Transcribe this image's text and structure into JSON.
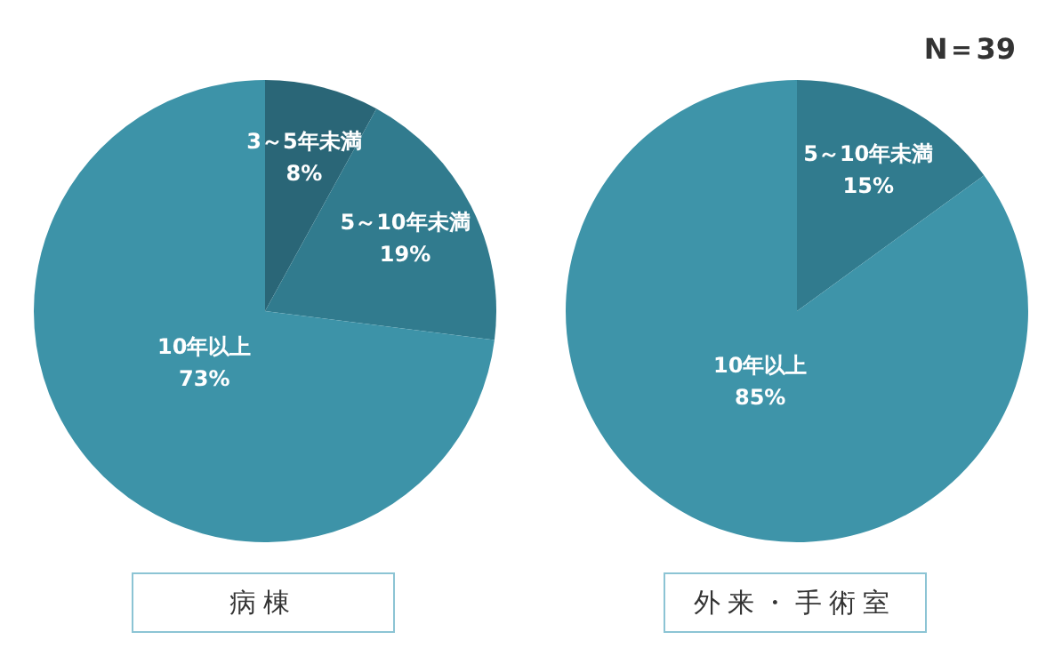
{
  "chart_data": [
    {
      "type": "pie",
      "title": "病棟",
      "categories": [
        "3～5年未満",
        "5～10年未満",
        "10年以上"
      ],
      "values": [
        8,
        19,
        73
      ],
      "colors": [
        "#2a6677",
        "#317b8e",
        "#3d93a8"
      ],
      "value_labels": [
        "8%",
        "19%",
        "73%"
      ]
    },
    {
      "type": "pie",
      "title": "外来・手術室",
      "categories": [
        "5～10年未満",
        "10年以上"
      ],
      "values": [
        15,
        85
      ],
      "colors": [
        "#317b8e",
        "#3e94a9"
      ],
      "value_labels": [
        "15%",
        "85%"
      ],
      "annotations": [
        "N＝39"
      ]
    }
  ]
}
